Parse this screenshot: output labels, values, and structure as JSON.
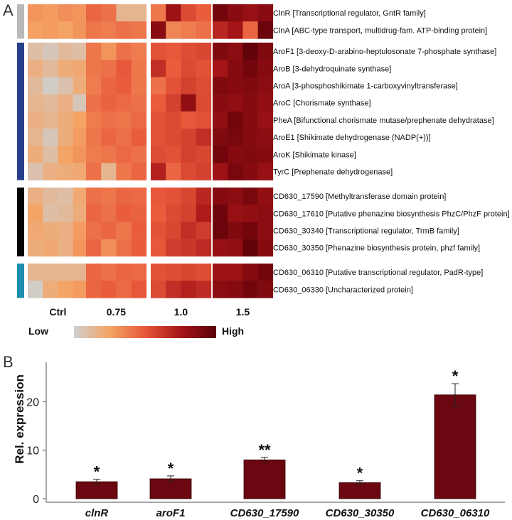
{
  "panels": {
    "a": "A",
    "b": "B"
  },
  "heatmap": {
    "conditions": [
      "Ctrl",
      "0.75",
      "1.0",
      "1.5"
    ],
    "replicates_per_condition": 4,
    "group_colors": [
      "#b9b9b9",
      "#27408b",
      "#050505",
      "#1f8fae"
    ],
    "groups": [
      {
        "rows": [
          {
            "gene": "ClnR [Transcriptional regulator, GntR family]",
            "values": [
              0.3,
              0.28,
              0.32,
              0.3,
              0.45,
              0.42,
              0.15,
              0.15,
              0.4,
              0.78,
              0.55,
              0.48,
              0.92,
              0.85,
              0.8,
              0.85
            ]
          },
          {
            "gene": "ClnA [ABC-type transport, multidrug-fam. ATP-binding protein]",
            "values": [
              0.26,
              0.28,
              0.25,
              0.3,
              0.4,
              0.38,
              0.42,
              0.4,
              0.85,
              0.35,
              0.38,
              0.42,
              0.68,
              0.75,
              0.45,
              0.95
            ]
          }
        ]
      },
      {
        "rows": [
          {
            "gene": "AroF1 [3-deoxy-D-arabino-heptulosonate 7-phosphate synthase]",
            "values": [
              0.1,
              0.05,
              0.12,
              0.1,
              0.4,
              0.3,
              0.42,
              0.38,
              0.52,
              0.5,
              0.54,
              0.56,
              0.88,
              0.84,
              0.98,
              0.88
            ]
          },
          {
            "gene": "AroB [3-dehydroquinate synthase]",
            "values": [
              0.18,
              0.12,
              0.2,
              0.22,
              0.4,
              0.42,
              0.5,
              0.4,
              0.65,
              0.48,
              0.55,
              0.52,
              0.75,
              0.86,
              0.92,
              0.86
            ]
          },
          {
            "gene": "AroA [3-phosphoshikimate 1-carboxyvinyltransferase]",
            "values": [
              0.12,
              0.02,
              0.08,
              0.2,
              0.38,
              0.45,
              0.48,
              0.4,
              0.42,
              0.52,
              0.58,
              0.54,
              0.88,
              0.86,
              0.88,
              0.84
            ]
          },
          {
            "gene": "AroC [Chorismate synthase]",
            "values": [
              0.15,
              0.12,
              0.18,
              0.05,
              0.42,
              0.46,
              0.44,
              0.42,
              0.48,
              0.58,
              0.82,
              0.55,
              0.85,
              0.82,
              0.86,
              0.82
            ]
          },
          {
            "gene": "PheA [Bifunctional chorismate mutase/prephenate dehydratase]",
            "values": [
              0.18,
              0.15,
              0.2,
              0.25,
              0.38,
              0.42,
              0.4,
              0.44,
              0.52,
              0.55,
              0.5,
              0.52,
              0.82,
              0.92,
              0.86,
              0.8
            ]
          },
          {
            "gene": "AroE1 [Shikimate dehydrogenase (NADP(+))]",
            "values": [
              0.15,
              0.05,
              0.2,
              0.28,
              0.4,
              0.45,
              0.42,
              0.48,
              0.52,
              0.55,
              0.58,
              0.65,
              0.88,
              0.9,
              0.86,
              0.84
            ]
          },
          {
            "gene": "AroK [Shikimate kinase]",
            "values": [
              0.2,
              0.1,
              0.25,
              0.3,
              0.38,
              0.4,
              0.44,
              0.42,
              0.54,
              0.52,
              0.58,
              0.56,
              0.92,
              0.86,
              0.88,
              0.86
            ]
          },
          {
            "gene": "TyrC [Prephenate dehydrogenase]",
            "values": [
              0.08,
              0.18,
              0.2,
              0.22,
              0.42,
              0.15,
              0.4,
              0.45,
              0.7,
              0.45,
              0.55,
              0.58,
              0.78,
              0.9,
              0.86,
              0.8
            ]
          }
        ]
      },
      {
        "rows": [
          {
            "gene": "CD630_17590 [Methyltransferase domain protein]",
            "values": [
              0.18,
              0.12,
              0.1,
              0.22,
              0.42,
              0.4,
              0.45,
              0.44,
              0.5,
              0.52,
              0.56,
              0.68,
              0.86,
              0.84,
              0.9,
              0.82
            ]
          },
          {
            "gene": "CD630_17610 [Putative phenazine biosynthesis PhzC/PhzF protein]",
            "values": [
              0.25,
              0.1,
              0.12,
              0.2,
              0.45,
              0.42,
              0.48,
              0.46,
              0.48,
              0.55,
              0.58,
              0.72,
              0.94,
              0.8,
              0.82,
              0.84
            ]
          },
          {
            "gene": "CD630_30340 [Transcriptional regulator, TrmB family]",
            "values": [
              0.22,
              0.2,
              0.18,
              0.28,
              0.42,
              0.45,
              0.4,
              0.48,
              0.52,
              0.56,
              0.65,
              0.6,
              0.95,
              0.88,
              0.92,
              0.84
            ]
          },
          {
            "gene": "CD630_30350 [Phenazine biosynthesis protein, phzf family]",
            "values": [
              0.2,
              0.22,
              0.18,
              0.3,
              0.45,
              0.32,
              0.42,
              0.48,
              0.5,
              0.6,
              0.62,
              0.66,
              0.8,
              0.82,
              0.98,
              0.86
            ]
          }
        ]
      },
      {
        "rows": [
          {
            "gene": "CD630_06310 [Putative transcriptional regulator, PadR-type]",
            "values": [
              0.15,
              0.15,
              0.15,
              0.15,
              0.45,
              0.42,
              0.45,
              0.44,
              0.52,
              0.54,
              0.56,
              0.54,
              0.78,
              0.78,
              0.86,
              0.92
            ]
          },
          {
            "gene": "CD630_06330 [Uncharacterized protein]",
            "values": [
              0.02,
              0.2,
              0.25,
              0.28,
              0.45,
              0.48,
              0.44,
              0.5,
              0.55,
              0.65,
              0.7,
              0.66,
              0.84,
              0.86,
              0.92,
              0.88
            ]
          }
        ]
      }
    ],
    "color_scale": {
      "low_label": "Low",
      "high_label": "High",
      "stops": [
        "#cfcfcf",
        "#f4a465",
        "#e8573a",
        "#a51417",
        "#5c0008"
      ]
    }
  },
  "chart_data": {
    "type": "bar",
    "categories": [
      "clnR",
      "aroF1",
      "CD630_17590",
      "CD630_30350",
      "CD630_06310"
    ],
    "values": [
      3.5,
      4.1,
      8.0,
      3.3,
      21.4
    ],
    "errors": [
      0.5,
      0.6,
      0.5,
      0.4,
      2.3
    ],
    "significance": [
      "*",
      "*",
      "**",
      "*",
      "*"
    ],
    "ylabel": "Rel. expression",
    "xlabel": "",
    "ylim": [
      0,
      26
    ],
    "yticks": [
      0,
      10,
      20
    ],
    "bar_color": "#6b0710"
  }
}
